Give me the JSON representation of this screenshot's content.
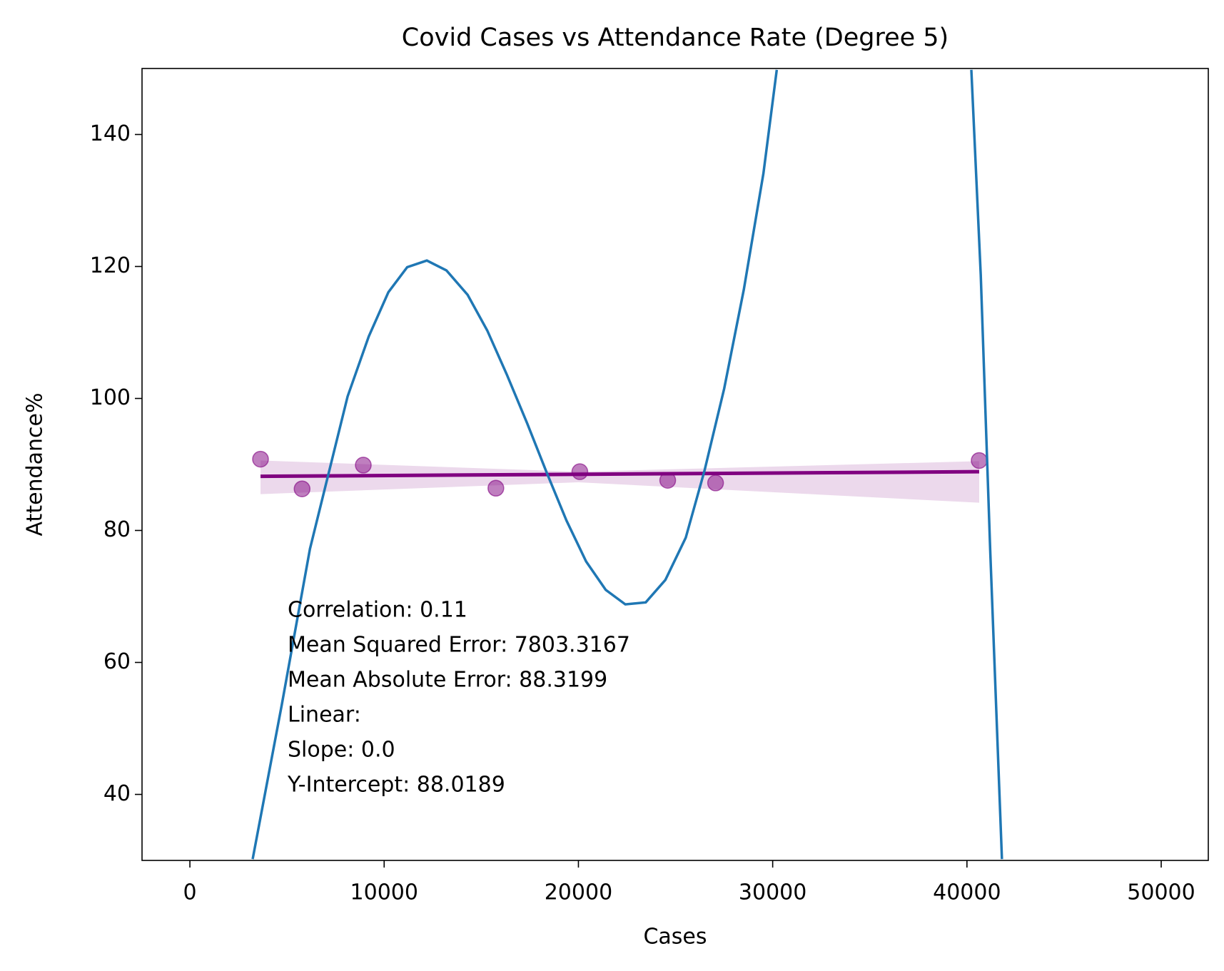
{
  "chart_data": {
    "type": "scatter",
    "title": "Covid Cases vs Attendance Rate (Degree 5)",
    "xlabel": "Cases",
    "ylabel": "Attendance%",
    "xlim": [
      -2464,
      52424
    ],
    "ylim": [
      30,
      150
    ],
    "xticks": [
      0,
      10000,
      20000,
      30000,
      40000,
      50000
    ],
    "yticks": [
      40,
      60,
      80,
      100,
      120,
      140
    ],
    "scatter": {
      "color": "#800080",
      "x": [
        3635,
        5775,
        8926,
        15751,
        20073,
        24596,
        27060,
        40630
      ],
      "y": [
        90.8,
        86.3,
        89.9,
        86.4,
        88.9,
        87.6,
        87.2,
        90.6
      ]
    },
    "fit": {
      "color": "#800080",
      "x": [
        3635,
        40630
      ],
      "y": [
        88.2,
        88.9
      ],
      "band_x": [
        3635,
        20000,
        40630
      ],
      "band_lower": [
        85.5,
        87.3,
        84.2
      ],
      "band_upper": [
        90.6,
        88.9,
        90.5
      ]
    },
    "polynomial": {
      "color": "#1f77b4",
      "x": [
        3231,
        4725,
        6180,
        8118,
        9208,
        10218,
        11187,
        12197,
        13207,
        14297,
        15307,
        16317,
        17367,
        18376,
        19386,
        20396,
        21405,
        22415,
        23465,
        24475,
        25525,
        26494,
        27504,
        28514,
        29523,
        30210,
        35000,
        40226,
        40711,
        41195,
        41801
      ],
      "y": [
        30.2,
        53.5,
        77.2,
        100.3,
        109.4,
        116.1,
        119.9,
        120.9,
        119.4,
        115.7,
        110.3,
        103.6,
        96.2,
        88.7,
        81.5,
        75.3,
        71.0,
        68.8,
        69.1,
        72.5,
        78.9,
        89.1,
        101.5,
        116.5,
        134.1,
        149.8,
        null,
        149.8,
        118.7,
        77.2,
        30.2
      ]
    },
    "annotations": [
      "Correlation: 0.11",
      "Mean Squared Error: 7803.3167",
      "Mean Absolute Error: 88.3199",
      "Linear:",
      "Slope: 0.0",
      "Y-Intercept: 88.0189"
    ]
  }
}
